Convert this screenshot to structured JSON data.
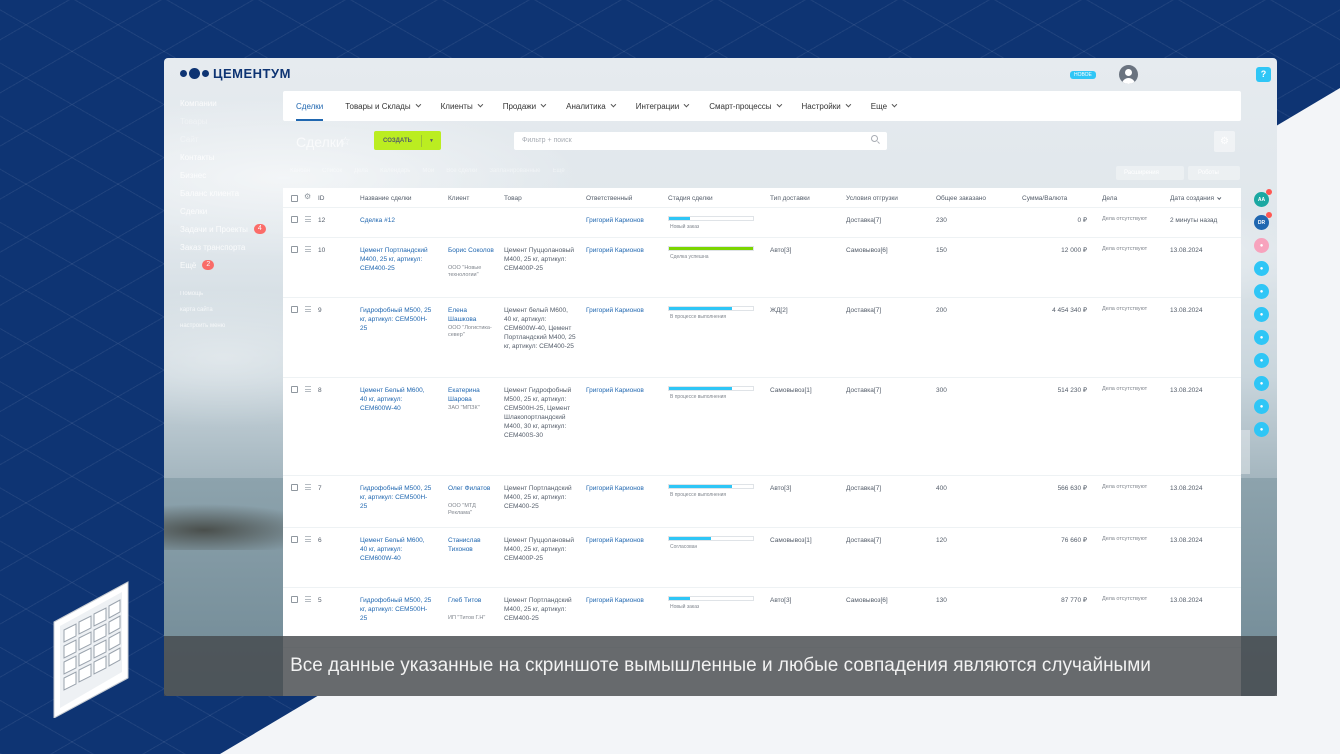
{
  "brand": {
    "name": "ЦЕМЕНТУМ"
  },
  "header": {
    "new_badge": "НОВОЕ",
    "help_label": "?"
  },
  "sidebar": {
    "items": [
      {
        "label": "Компании"
      },
      {
        "label": "Товары"
      },
      {
        "label": "Сайт"
      },
      {
        "label": "Контакты"
      },
      {
        "label": "Бизнес"
      },
      {
        "label": "Баланс клиента"
      },
      {
        "label": "Сделки"
      },
      {
        "label": "Задачи и Проекты",
        "badge": "4"
      },
      {
        "label": "Заказ транспорта"
      },
      {
        "label": "Ещё",
        "badge": "2"
      }
    ],
    "footer": [
      "Помощь",
      "карта сайта",
      "настроить меню"
    ]
  },
  "nav": {
    "tabs": [
      {
        "label": "Сделки",
        "active": true
      },
      {
        "label": "Товары и Склады"
      },
      {
        "label": "Клиенты"
      },
      {
        "label": "Продажи"
      },
      {
        "label": "Аналитика"
      },
      {
        "label": "Интеграции"
      },
      {
        "label": "Смарт-процессы"
      },
      {
        "label": "Настройки"
      },
      {
        "label": "Еще"
      }
    ]
  },
  "toolbar": {
    "title": "Сделки",
    "create_label": "СОЗДАТЬ",
    "filter_placeholder": "Фильтр + поиск",
    "views": [
      "Канбан",
      "Список",
      "Дела",
      "Календарь",
      "Мои",
      "Все сделки",
      "Запланированные",
      "Ещё"
    ],
    "extensions_label": "Расширения",
    "robots_label": "Роботы"
  },
  "table": {
    "headers": {
      "id": "ID",
      "name": "Название сделки",
      "client": "Клиент",
      "product": "Товар",
      "responsible": "Ответственный",
      "stage": "Стадия сделки",
      "delivery_type": "Тип доставки",
      "shipping_terms": "Условия отгрузки",
      "total_ordered": "Общее заказано",
      "amount": "Сумма/Валюта",
      "activities": "Дела",
      "created": "Дата создания"
    },
    "rows": [
      {
        "id": "12",
        "name": "Сделка #12",
        "client_name": "",
        "client_company": "",
        "product": "",
        "responsible": "Григорий Карионов",
        "stage_label": "Новый заказ",
        "stage_progress": 0.25,
        "stage_color": "#2fc6f6",
        "delivery": "",
        "terms": "Доставка[7]",
        "total": "230",
        "amount": "0 ₽",
        "activities": "Дела отсутствуют",
        "created": "2 минуты назад"
      },
      {
        "id": "10",
        "name": "Цемент Портландский М400, 25 кг, артикул: CEM400-25",
        "client_name": "Борис Соколов",
        "client_company": "ООО \"Новые технологии\"",
        "product": "Цемент Пуццолановый М400, 25 кг, артикул: CEM400P-25",
        "responsible": "Григорий Карионов",
        "stage_label": "Сделка успешна",
        "stage_progress": 1.0,
        "stage_color": "#7bd500",
        "delivery": "Авто[3]",
        "terms": "Самовывоз[6]",
        "total": "150",
        "amount": "12 000 ₽",
        "activities": "Дела отсутствуют",
        "created": "13.08.2024"
      },
      {
        "id": "9",
        "name": "Гидрофобный М500, 25 кг, артикул: CEM500H-25",
        "client_name": "Елена Шашкова",
        "client_company": "ООО \"Логистика-север\"",
        "product": "Цемент белый М600, 40 кг, артикул: CEM600W-40, Цемент Портландский М400, 25 кг, артикул: CEM400-25",
        "responsible": "Григорий Карионов",
        "stage_label": "В процессе выполнения",
        "stage_progress": 0.75,
        "stage_color": "#2fc6f6",
        "delivery": "ЖД[2]",
        "terms": "Доставка[7]",
        "total": "200",
        "amount": "4 454 340 ₽",
        "activities": "Дела отсутствуют",
        "created": "13.08.2024"
      },
      {
        "id": "8",
        "name": "Цемент Белый М600, 40 кг, артикул: CEM600W-40",
        "client_name": "Екатерина Шарова",
        "client_company": "ЗАО \"МПЗК\"",
        "product": "Цемент Гидрофобный М500, 25 кг, артикул: CEM500H-25, Цемент Шлакопортландский М400, 30 кг, артикул: CEM400S-30",
        "responsible": "Григорий Карионов",
        "stage_label": "В процессе выполнения",
        "stage_progress": 0.75,
        "stage_color": "#2fc6f6",
        "delivery": "Самовывоз[1]",
        "terms": "Доставка[7]",
        "total": "300",
        "amount": "514 230 ₽",
        "activities": "Дела отсутствуют",
        "created": "13.08.2024"
      },
      {
        "id": "7",
        "name": "Гидрофобный М500, 25 кг, артикул: CEM500H-25",
        "client_name": "Олег Филатов",
        "client_company": "ООО \"МТД Реклама\"",
        "product": "Цемент Портландский М400, 25 кг, артикул: CEM400-25",
        "responsible": "Григорий Карионов",
        "stage_label": "В процессе выполнения",
        "stage_progress": 0.75,
        "stage_color": "#2fc6f6",
        "delivery": "Авто[3]",
        "terms": "Доставка[7]",
        "total": "400",
        "amount": "566 630 ₽",
        "activities": "Дела отсутствуют",
        "created": "13.08.2024"
      },
      {
        "id": "6",
        "name": "Цемент Белый М600, 40 кг, артикул: CEM600W-40",
        "client_name": "Станислав Тихонов",
        "client_company": "",
        "product": "Цемент Пуццолановый М400, 25 кг, артикул: CEM400P-25",
        "responsible": "Григорий Карионов",
        "stage_label": "Согласован",
        "stage_progress": 0.5,
        "stage_color": "#2fc6f6",
        "delivery": "Самовывоз[1]",
        "terms": "Доставка[7]",
        "total": "120",
        "amount": "76 660 ₽",
        "activities": "Дела отсутствуют",
        "created": "13.08.2024"
      },
      {
        "id": "5",
        "name": "Гидрофобный М500, 25 кг, артикул: CEM500H-25",
        "client_name": "Глеб Титов",
        "client_company": "ИП \"Титов Г.Н\"",
        "product": "Цемент Портландский М400, 25 кг, артикул: CEM400-25",
        "responsible": "Григорий Карионов",
        "stage_label": "Новый заказ",
        "stage_progress": 0.25,
        "stage_color": "#2fc6f6",
        "delivery": "Авто[3]",
        "terms": "Самовывоз[6]",
        "total": "130",
        "amount": "87 770 ₽",
        "activities": "Дела отсутствуют",
        "created": "13.08.2024"
      }
    ]
  },
  "right_rail": [
    {
      "label": "AA",
      "color": "#1ba8a2",
      "badge": true
    },
    {
      "label": "DR",
      "color": "#2067b0",
      "badge": true
    },
    {
      "label": "",
      "color": "#f7a3bd"
    },
    {
      "label": "",
      "color": "#2fc6f6"
    },
    {
      "label": "",
      "color": "#2fc6f6"
    },
    {
      "label": "",
      "color": "#2fc6f6"
    },
    {
      "label": "",
      "color": "#2fc6f6"
    },
    {
      "label": "",
      "color": "#2fc6f6"
    },
    {
      "label": "",
      "color": "#2fc6f6"
    },
    {
      "label": "",
      "color": "#2fc6f6"
    },
    {
      "label": "",
      "color": "#2fc6f6"
    }
  ],
  "disclaimer": "Все данные указанные на скриншоте вымышленные и любые совпадения являются случайными"
}
